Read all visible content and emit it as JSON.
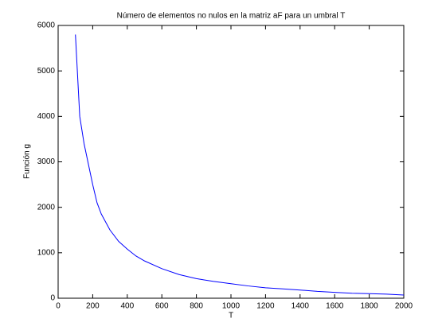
{
  "chart_data": {
    "type": "line",
    "title": "Número de elementos no nulos en la matriz aF para un umbral T",
    "xlabel": "T",
    "ylabel": "Función g",
    "x": [
      100,
      125,
      150,
      175,
      200,
      225,
      250,
      300,
      350,
      400,
      450,
      500,
      600,
      700,
      800,
      900,
      1000,
      1100,
      1200,
      1300,
      1400,
      1500,
      1600,
      1700,
      1800,
      1900,
      2000
    ],
    "series": [
      {
        "color": "#0000ff",
        "values": [
          5800,
          4000,
          3400,
          2950,
          2500,
          2100,
          1850,
          1500,
          1250,
          1080,
          930,
          820,
          650,
          520,
          430,
          370,
          320,
          270,
          230,
          205,
          180,
          150,
          130,
          110,
          100,
          90,
          70
        ]
      }
    ],
    "xlim": [
      0,
      2000
    ],
    "xticks": [
      0,
      200,
      400,
      600,
      800,
      1000,
      1200,
      1400,
      1600,
      1800,
      2000
    ],
    "ylim": [
      0,
      6000
    ],
    "yticks": [
      0,
      1000,
      2000,
      3000,
      4000,
      5000,
      6000
    ],
    "grid": false
  }
}
